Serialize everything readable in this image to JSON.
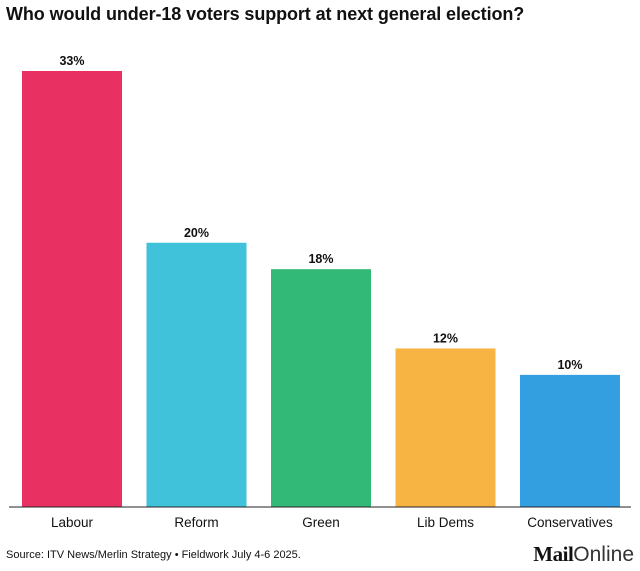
{
  "chart_data": {
    "type": "bar",
    "title": "Who would under-18 voters support at next general election?",
    "categories": [
      "Labour",
      "Reform",
      "Green",
      "Lib Dems",
      "Conservatives"
    ],
    "values": [
      33,
      20,
      18,
      12,
      10
    ],
    "value_labels": [
      "33%",
      "20%",
      "18%",
      "12%",
      "10%"
    ],
    "colors": [
      "#e83062",
      "#40c2da",
      "#32b978",
      "#f8b443",
      "#339ee0"
    ],
    "ylim": [
      0,
      33
    ],
    "grid": false,
    "legend": "none"
  },
  "footer": {
    "source": "Source: ITV News/Merlin Strategy • Fieldwork July 4-6 2025.",
    "logo_bold": "Mail",
    "logo_regular": "Online"
  }
}
